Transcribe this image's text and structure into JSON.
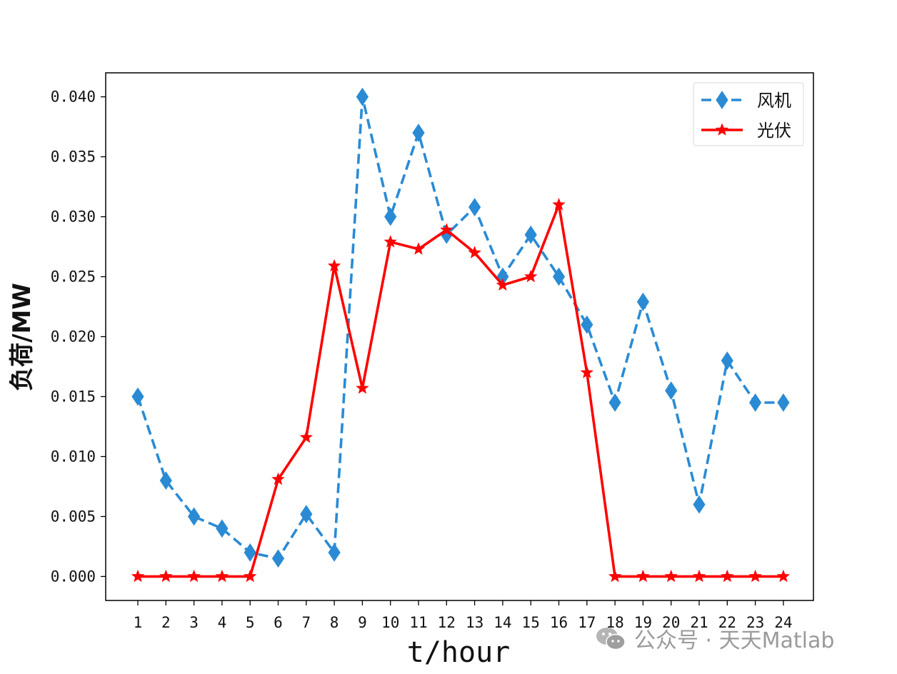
{
  "chart_data": {
    "type": "line",
    "xlabel": "t/hour",
    "ylabel": "负荷/MW",
    "categories": [
      "1",
      "2",
      "3",
      "4",
      "5",
      "6",
      "7",
      "8",
      "9",
      "10",
      "11",
      "12",
      "13",
      "14",
      "15",
      "16",
      "17",
      "18",
      "19",
      "20",
      "21",
      "22",
      "23",
      "24"
    ],
    "ylim": [
      -0.002,
      0.042
    ],
    "yticks": [
      "0.000",
      "0.005",
      "0.010",
      "0.015",
      "0.020",
      "0.025",
      "0.030",
      "0.035",
      "0.040"
    ],
    "legend_position": "top-right",
    "grid": false,
    "series": [
      {
        "name": "风机",
        "color": "#2a8bd4",
        "line_style": "dashed",
        "marker": "diamond",
        "values": [
          0.015,
          0.008,
          0.005,
          0.004,
          0.002,
          0.0015,
          0.0052,
          0.002,
          0.04,
          0.03,
          0.037,
          0.0285,
          0.0308,
          0.025,
          0.0285,
          0.025,
          0.021,
          0.0145,
          0.0229,
          0.0155,
          0.006,
          0.018,
          0.0145,
          0.0145
        ]
      },
      {
        "name": "光伏",
        "color": "#ff0000",
        "line_style": "solid",
        "marker": "star",
        "values": [
          0,
          0,
          0,
          0,
          0,
          0.0081,
          0.0116,
          0.0259,
          0.0157,
          0.0279,
          0.0273,
          0.0289,
          0.027,
          0.0243,
          0.025,
          0.031,
          0.017,
          0,
          0,
          0,
          0,
          0,
          0,
          0
        ]
      }
    ]
  },
  "watermark": {
    "text": "公众号 · 天天Matlab",
    "icon": "wechat-icon"
  }
}
